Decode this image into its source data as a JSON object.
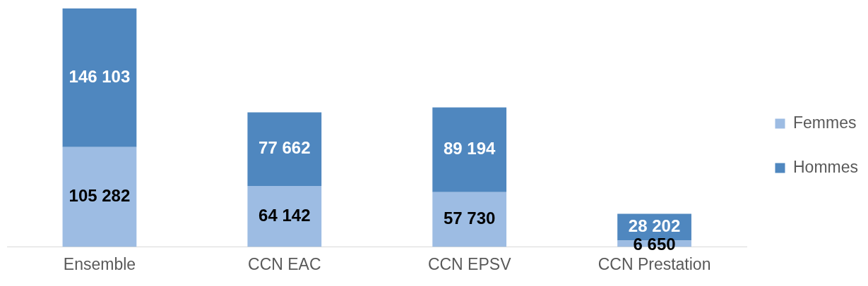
{
  "chart_data": {
    "type": "bar",
    "stacked": true,
    "data_labels": true,
    "legend": "right",
    "grid": false,
    "categories": [
      "Ensemble",
      "CCN EAC",
      "CCN EPSV",
      "CCN Prestation"
    ],
    "series": [
      {
        "name": "Femmes",
        "color": "#9dbce3",
        "values": [
          105282,
          64142,
          57730,
          6650
        ]
      },
      {
        "name": "Hommes",
        "color": "#4f87bf",
        "values": [
          146103,
          77662,
          89194,
          28202
        ]
      }
    ]
  }
}
